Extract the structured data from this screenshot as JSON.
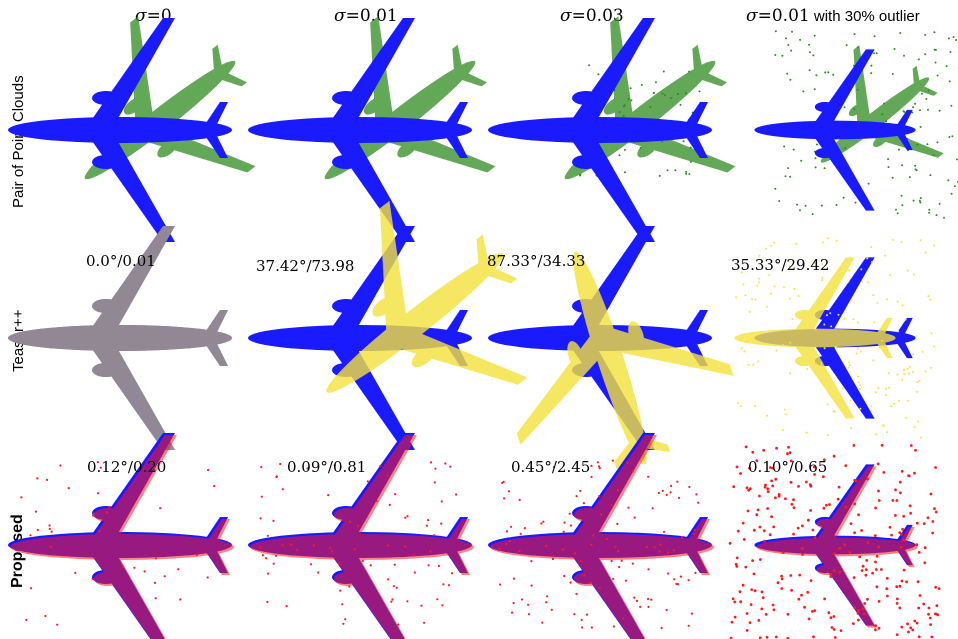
{
  "columns": [
    {
      "sym": "σ",
      "eq": "=0",
      "suffix": ""
    },
    {
      "sym": "σ",
      "eq": "=0.01",
      "suffix": ""
    },
    {
      "sym": "σ",
      "eq": "=0.03",
      "suffix": ""
    },
    {
      "sym": "σ",
      "eq": "=0.01",
      "suffix": " with 30% outlier"
    }
  ],
  "rows": [
    {
      "label": "Pair of Point Clouds"
    },
    {
      "label": "Teaser++"
    },
    {
      "label": "Proposed"
    }
  ],
  "metrics": {
    "teaser": [
      "0.0°/0.01",
      "37.42°/73.98",
      "87.33°/34.33",
      "35.33°/29.42"
    ],
    "proposed": [
      "0.12°/0.20",
      "0.09°/0.81",
      "0.45°/2.45",
      "0.10°/0.65"
    ]
  },
  "colors": {
    "target": "#1a1aff",
    "source_input": "#2e8b1e",
    "teaser_aligned": "#f5e23c",
    "proposed_aligned": "#ff1a1a"
  }
}
